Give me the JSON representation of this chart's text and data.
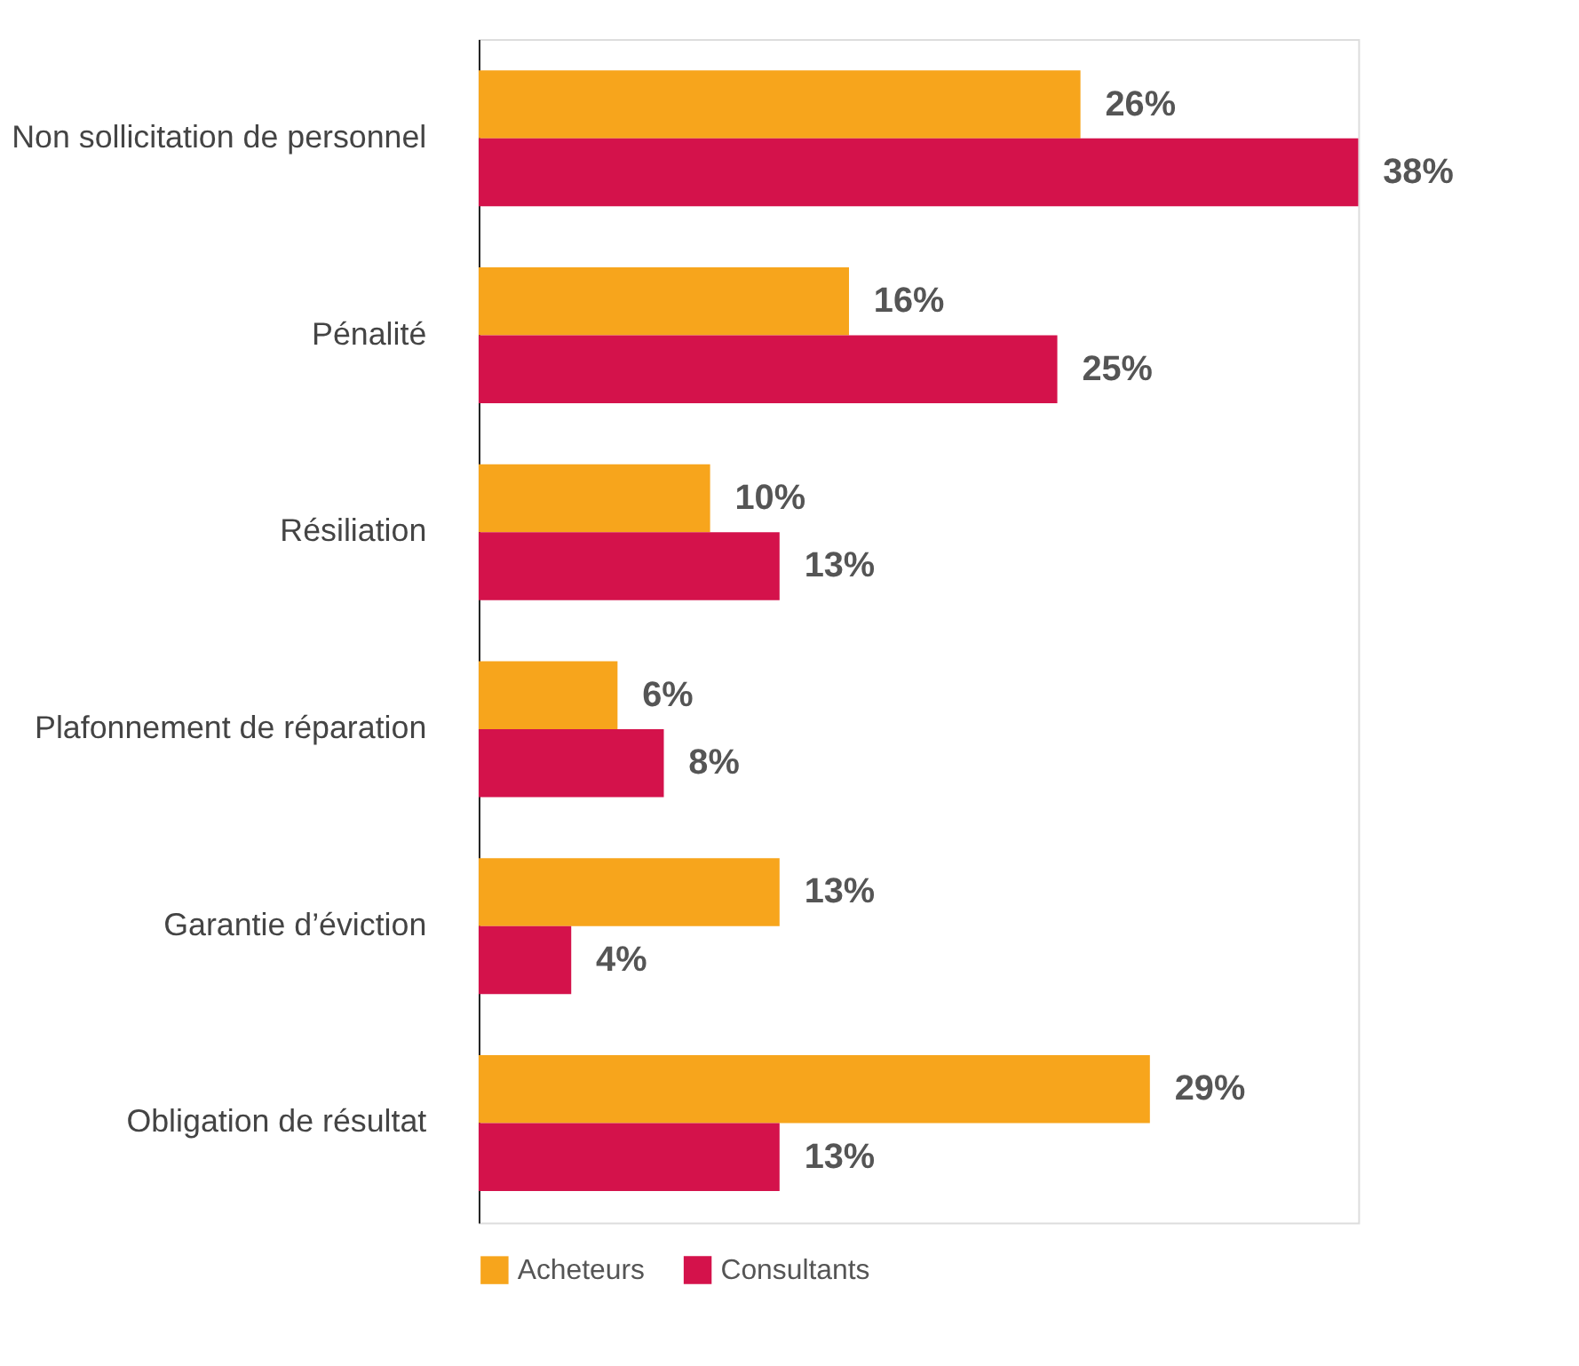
{
  "chart_data": {
    "type": "bar",
    "orientation": "horizontal",
    "categories": [
      "Non sollicitation de personnel",
      "Pénalité",
      "Résiliation",
      "Plafonnement de réparation",
      "Garantie d’éviction",
      "Obligation de résultat"
    ],
    "series": [
      {
        "name": "Acheteurs",
        "color": "#f7a51c",
        "values": [
          26,
          16,
          10,
          6,
          13,
          29
        ],
        "value_labels": [
          "26%",
          "16%",
          "10%",
          "6%",
          "13%",
          "29%"
        ]
      },
      {
        "name": "Consultants",
        "color": "#d4124b",
        "values": [
          38,
          25,
          13,
          8,
          4,
          13
        ],
        "value_labels": [
          "38%",
          "25%",
          "13%",
          "8%",
          "4%",
          "13%"
        ]
      }
    ],
    "xlim": [
      0,
      38
    ],
    "grid": false,
    "legend": "bottom",
    "tick_labels": "y"
  }
}
